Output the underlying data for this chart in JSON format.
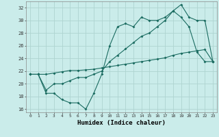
{
  "xlabel": "Humidex (Indice chaleur)",
  "background_color": "#caecea",
  "grid_color": "#aed4d0",
  "line_color": "#1a6b60",
  "xlim": [
    -0.5,
    23.5
  ],
  "ylim": [
    15.5,
    33.0
  ],
  "xticks": [
    0,
    1,
    2,
    3,
    4,
    5,
    6,
    7,
    8,
    9,
    10,
    11,
    12,
    13,
    14,
    15,
    16,
    17,
    18,
    19,
    20,
    21,
    22,
    23
  ],
  "yticks": [
    16,
    18,
    20,
    22,
    24,
    26,
    28,
    30,
    32
  ],
  "line1_x": [
    0,
    1,
    2,
    3,
    4,
    5,
    6,
    7,
    8,
    9,
    10,
    11,
    12,
    13,
    14,
    15,
    16,
    17,
    18,
    19,
    20,
    21,
    22,
    23
  ],
  "line1_y": [
    21.5,
    21.5,
    18.5,
    18.5,
    17.5,
    17.0,
    17.0,
    16.0,
    18.5,
    21.5,
    26.0,
    29.0,
    29.5,
    29.0,
    30.5,
    30.0,
    30.0,
    30.5,
    31.5,
    30.5,
    29.0,
    25.0,
    23.5,
    23.5
  ],
  "line2_x": [
    0,
    1,
    2,
    3,
    4,
    5,
    6,
    7,
    8,
    9,
    10,
    11,
    12,
    13,
    14,
    15,
    16,
    17,
    18,
    19,
    20,
    21,
    22,
    23
  ],
  "line2_y": [
    21.5,
    21.5,
    19.0,
    20.0,
    20.0,
    20.5,
    21.0,
    21.0,
    21.5,
    22.0,
    23.5,
    24.5,
    25.5,
    26.5,
    27.5,
    28.0,
    29.0,
    30.0,
    31.5,
    32.5,
    30.5,
    30.0,
    30.0,
    23.5
  ],
  "line3_x": [
    0,
    1,
    2,
    3,
    4,
    5,
    6,
    7,
    8,
    9,
    10,
    11,
    12,
    13,
    14,
    15,
    16,
    17,
    18,
    19,
    20,
    21,
    22,
    23
  ],
  "line3_y": [
    21.5,
    21.5,
    21.5,
    21.7,
    21.9,
    22.1,
    22.1,
    22.2,
    22.3,
    22.5,
    22.7,
    22.9,
    23.1,
    23.3,
    23.5,
    23.7,
    23.9,
    24.1,
    24.5,
    24.8,
    25.0,
    25.2,
    25.4,
    23.5
  ]
}
